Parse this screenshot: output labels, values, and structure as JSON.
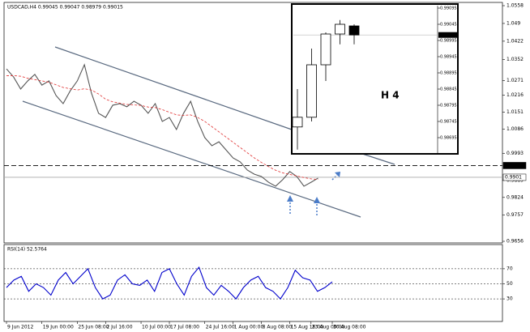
{
  "chart_data": [
    {
      "type": "line",
      "title": "USDCAD,H4 0.99045 0.99047 0.98979 0.99015",
      "series": [
        {
          "color": "#555555",
          "values": [
            1.0316,
            1.0285,
            1.0239,
            1.027,
            1.0295,
            1.0254,
            1.027,
            1.0214,
            1.0183,
            1.0232,
            1.027,
            1.0332,
            1.0223,
            1.0146,
            1.013,
            1.0177,
            1.0183,
            1.0171,
            1.0192,
            1.0177,
            1.0146,
            1.0183,
            1.0115,
            1.013,
            1.0084,
            1.0146,
            1.0192,
            1.0115,
            1.0053,
            1.0022,
            1.0037,
            1.0006,
            0.9975,
            0.996,
            0.9929,
            0.9913,
            0.9904,
            0.9882,
            0.9867,
            0.9892,
            0.9923,
            0.9904,
            0.9867,
            0.9882,
            0.9898
          ]
        },
        {
          "color": "#e03030",
          "values": [
            1.029,
            1.029,
            1.0288,
            1.028,
            1.0275,
            1.027,
            1.0265,
            1.0255,
            1.0245,
            1.024,
            1.0235,
            1.024,
            1.0235,
            1.022,
            1.02,
            1.019,
            1.0185,
            1.018,
            1.0178,
            1.0176,
            1.017,
            1.0168,
            1.016,
            1.015,
            1.014,
            1.0138,
            1.014,
            1.013,
            1.0115,
            1.0095,
            1.0075,
            1.0055,
            1.0035,
            1.0015,
            0.9995,
            0.9975,
            0.9958,
            0.9942,
            0.9928,
            0.9918,
            0.9912,
            0.9906,
            0.99,
            0.9895,
            0.9893
          ]
        }
      ],
      "ylim": [
        0.9656,
        1.0558
      ],
      "yticks": [
        1.0558,
        1.049,
        1.0422,
        1.0352,
        1.0271,
        1.0216,
        1.0151,
        1.0086,
        0.9993,
        0.9889,
        0.9824,
        0.9757,
        0.9656
      ],
      "levels": [
        0.9946,
        0.9901
      ],
      "xlim": [
        0,
        46
      ],
      "xticks": [
        {
          "value": 0,
          "label": "9 Jun 2012"
        },
        {
          "value": 5,
          "label": "19 Jun 00:00"
        },
        {
          "value": 10,
          "label": "25 Jun 08:00"
        },
        {
          "value": 14,
          "label": "2 Jul 16:00"
        },
        {
          "value": 19,
          "label": "10 Jul 00:00"
        },
        {
          "value": 23,
          "label": "17 Jul 08:00"
        },
        {
          "value": 28,
          "label": "24 Jul 16:00"
        },
        {
          "value": 32,
          "label": "1 Aug 00:00"
        },
        {
          "value": 36,
          "label": "8 Aug 08:00"
        },
        {
          "value": 40,
          "label": "15 Aug 16:00"
        },
        {
          "value": 43,
          "label": "23 Aug 00:00"
        },
        {
          "value": 46,
          "label": "30 Aug 08:00"
        }
      ]
    },
    {
      "type": "candlestick",
      "annotation": "H 4",
      "open": [
        0.98728,
        0.98758,
        0.9892,
        0.99015,
        0.9904
      ],
      "high": [
        0.98845,
        0.9897,
        0.9902,
        0.99058,
        0.99045
      ],
      "low": [
        0.98658,
        0.98745,
        0.9887,
        0.98983,
        0.98983
      ],
      "close": [
        0.98758,
        0.9892,
        0.99015,
        0.99045,
        0.99012
      ],
      "up_color": "#ffffff",
      "down_color": "#000000",
      "ylim": [
        0.9865,
        0.991
      ],
      "yticks": [
        0.98695,
        0.98745,
        0.98795,
        0.98845,
        0.98895,
        0.98945,
        0.98995,
        0.99045,
        0.99095
      ],
      "current": 0.99012
    },
    {
      "type": "line",
      "title": "RSI(14) 52.5764",
      "series": [
        {
          "color": "#0000cc",
          "values": [
            45,
            55,
            60,
            40,
            50,
            45,
            35,
            55,
            65,
            50,
            60,
            70,
            45,
            30,
            35,
            55,
            62,
            50,
            48,
            55,
            40,
            65,
            70,
            50,
            35,
            60,
            72,
            45,
            35,
            48,
            40,
            30,
            45,
            55,
            60,
            45,
            40,
            30,
            45,
            68,
            58,
            55,
            40,
            45,
            52.5764
          ]
        }
      ],
      "ylim": [
        0,
        100
      ],
      "yticks": [
        30,
        50,
        70
      ]
    }
  ]
}
